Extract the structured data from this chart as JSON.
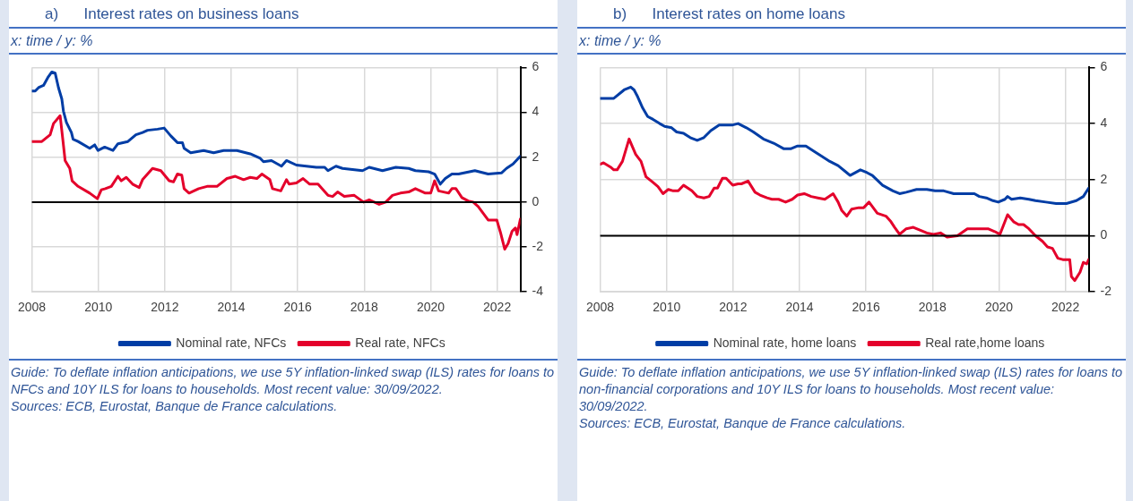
{
  "chart_data": [
    {
      "type": "line",
      "title": "a)      Interest rates on business loans",
      "subtitle": "x: time / y: %",
      "xlim": [
        2008,
        2022.7
      ],
      "xticks": [
        2008,
        2010,
        2012,
        2014,
        2016,
        2018,
        2020,
        2022
      ],
      "ylim": [
        -4,
        6
      ],
      "yticks": [
        -4,
        -2,
        0,
        2,
        4,
        6
      ],
      "grid": true,
      "legend": "bottom",
      "marker": "none",
      "line_style": "solid",
      "ref_lines": [
        {
          "axis": "y",
          "value": 0,
          "color": "#000000"
        }
      ],
      "annotations": [
        "Guide: To deflate inflation anticipations, we use 5Y inflation-linked swap (ILS) rates for loans to NFCs and 10Y ILS for loans to households. Most recent value: 30/09/2022.",
        "Sources: ECB, Eurostat, Banque de France calculations."
      ],
      "series": [
        {
          "name": "Nominal rate, NFCs",
          "color": "#003da5",
          "x": [
            2008.0,
            2008.1,
            2008.2,
            2008.35,
            2008.48,
            2008.6,
            2008.7,
            2008.8,
            2008.9,
            2008.95,
            2009.04,
            2009.19,
            2009.24,
            2009.39,
            2009.74,
            2009.89,
            2009.99,
            2010.19,
            2010.44,
            2010.59,
            2010.89,
            2011.13,
            2011.33,
            2011.48,
            2011.78,
            2011.98,
            2012.18,
            2012.38,
            2012.53,
            2012.58,
            2012.78,
            2013.17,
            2013.47,
            2013.77,
            2014.17,
            2014.57,
            2014.87,
            2014.97,
            2015.21,
            2015.51,
            2015.66,
            2015.96,
            2016.26,
            2016.56,
            2016.81,
            2016.91,
            2017.15,
            2017.35,
            2017.95,
            2018.15,
            2018.55,
            2018.95,
            2019.34,
            2019.54,
            2019.94,
            2020.12,
            2020.29,
            2020.44,
            2020.64,
            2020.84,
            2021.33,
            2021.73,
            2022.13,
            2022.28,
            2022.48,
            2022.7
          ],
          "values": [
            4.95,
            4.95,
            5.1,
            5.2,
            5.55,
            5.8,
            5.75,
            5.1,
            4.6,
            4.05,
            3.55,
            3.1,
            2.8,
            2.7,
            2.4,
            2.55,
            2.3,
            2.45,
            2.3,
            2.6,
            2.7,
            3.0,
            3.1,
            3.2,
            3.25,
            3.3,
            2.95,
            2.65,
            2.65,
            2.4,
            2.2,
            2.3,
            2.2,
            2.3,
            2.3,
            2.15,
            1.95,
            1.8,
            1.85,
            1.6,
            1.85,
            1.65,
            1.6,
            1.55,
            1.55,
            1.4,
            1.6,
            1.5,
            1.4,
            1.55,
            1.4,
            1.55,
            1.5,
            1.4,
            1.35,
            1.25,
            0.8,
            1.05,
            1.25,
            1.25,
            1.4,
            1.25,
            1.3,
            1.5,
            1.7,
            2.05
          ]
        },
        {
          "name": "Real rate, NFCs",
          "color": "#e4002b",
          "x": [
            2008.0,
            2008.3,
            2008.55,
            2008.65,
            2008.85,
            2008.93,
            2009.0,
            2009.14,
            2009.21,
            2009.39,
            2009.74,
            2009.97,
            2010.09,
            2010.21,
            2010.39,
            2010.59,
            2010.69,
            2010.84,
            2011.03,
            2011.23,
            2011.33,
            2011.63,
            2011.88,
            2012.13,
            2012.26,
            2012.38,
            2012.51,
            2012.58,
            2012.73,
            2013.02,
            2013.27,
            2013.57,
            2013.87,
            2014.12,
            2014.37,
            2014.57,
            2014.77,
            2014.92,
            2015.16,
            2015.24,
            2015.49,
            2015.66,
            2015.74,
            2015.96,
            2016.16,
            2016.36,
            2016.61,
            2016.91,
            2017.05,
            2017.2,
            2017.4,
            2017.7,
            2017.98,
            2018.15,
            2018.45,
            2018.65,
            2018.85,
            2019.09,
            2019.34,
            2019.54,
            2019.69,
            2019.84,
            2020.0,
            2020.12,
            2020.24,
            2020.54,
            2020.64,
            2020.76,
            2020.94,
            2021.13,
            2021.28,
            2021.43,
            2021.53,
            2021.73,
            2021.99,
            2022.1,
            2022.23,
            2022.33,
            2022.45,
            2022.55,
            2022.6,
            2022.7
          ],
          "values": [
            2.7,
            2.7,
            3.0,
            3.5,
            3.85,
            2.8,
            1.85,
            1.5,
            0.95,
            0.7,
            0.4,
            0.15,
            0.55,
            0.6,
            0.7,
            1.15,
            0.95,
            1.1,
            0.8,
            0.65,
            1.0,
            1.5,
            1.4,
            0.95,
            0.9,
            1.25,
            1.2,
            0.6,
            0.4,
            0.6,
            0.7,
            0.7,
            1.05,
            1.15,
            1.0,
            1.1,
            1.05,
            1.25,
            1.0,
            0.6,
            0.5,
            1.0,
            0.8,
            0.85,
            1.05,
            0.8,
            0.8,
            0.3,
            0.25,
            0.45,
            0.25,
            0.3,
            0.0,
            0.1,
            -0.1,
            0.0,
            0.3,
            0.4,
            0.45,
            0.6,
            0.5,
            0.4,
            0.4,
            0.95,
            0.5,
            0.4,
            0.6,
            0.6,
            0.2,
            0.05,
            0.0,
            -0.2,
            -0.4,
            -0.8,
            -0.8,
            -1.35,
            -2.1,
            -1.85,
            -1.3,
            -1.15,
            -1.45,
            -0.75
          ]
        }
      ]
    },
    {
      "type": "line",
      "title": "b)      Interest rates on home loans",
      "subtitle": "x: time / y: %",
      "xlim": [
        2008,
        2022.7
      ],
      "xticks": [
        2008,
        2010,
        2012,
        2014,
        2016,
        2018,
        2020,
        2022
      ],
      "ylim": [
        -2,
        6
      ],
      "yticks": [
        -2,
        0,
        2,
        4,
        6
      ],
      "grid": true,
      "legend": "bottom",
      "marker": "none",
      "line_style": "solid",
      "ref_lines": [
        {
          "axis": "y",
          "value": 0,
          "color": "#000000"
        }
      ],
      "annotations": [
        "Guide: To deflate inflation anticipations, we use 5Y inflation-linked swap (ILS) rates for loans to non-financial corporations and 10Y ILS for loans to households. Most recent value: 30/09/2022.",
        "Sources: ECB, Eurostat, Banque de France calculations."
      ],
      "series": [
        {
          "name": "Nominal rate, home loans",
          "color": "#003da5",
          "x": [
            2008.0,
            2008.41,
            2008.72,
            2008.92,
            2009.02,
            2009.13,
            2009.28,
            2009.43,
            2009.59,
            2009.79,
            2009.94,
            2010.15,
            2010.3,
            2010.51,
            2010.71,
            2010.92,
            2011.12,
            2011.33,
            2011.58,
            2011.99,
            2012.15,
            2012.4,
            2012.61,
            2012.91,
            2013.22,
            2013.53,
            2013.73,
            2013.94,
            2014.19,
            2014.45,
            2014.65,
            2014.91,
            2015.16,
            2015.42,
            2015.52,
            2015.83,
            2016.03,
            2016.19,
            2016.5,
            2016.81,
            2017.01,
            2017.21,
            2017.52,
            2017.83,
            2018.08,
            2018.34,
            2018.64,
            2019.26,
            2019.41,
            2019.62,
            2019.82,
            2019.98,
            2020.18,
            2020.26,
            2020.38,
            2020.64,
            2020.9,
            2021.1,
            2021.41,
            2021.72,
            2022.03,
            2022.33,
            2022.54,
            2022.7
          ],
          "values": [
            4.9,
            4.9,
            5.2,
            5.3,
            5.2,
            4.95,
            4.55,
            4.25,
            4.15,
            4.0,
            3.9,
            3.85,
            3.7,
            3.65,
            3.5,
            3.4,
            3.5,
            3.75,
            3.95,
            3.95,
            4.0,
            3.85,
            3.7,
            3.45,
            3.3,
            3.1,
            3.1,
            3.2,
            3.2,
            3.0,
            2.85,
            2.65,
            2.5,
            2.25,
            2.15,
            2.35,
            2.25,
            2.15,
            1.8,
            1.6,
            1.5,
            1.55,
            1.65,
            1.65,
            1.6,
            1.6,
            1.5,
            1.5,
            1.4,
            1.35,
            1.25,
            1.2,
            1.3,
            1.4,
            1.3,
            1.35,
            1.3,
            1.25,
            1.2,
            1.15,
            1.15,
            1.25,
            1.4,
            1.7
          ]
        },
        {
          "name": "Real rate,home loans",
          "color": "#e4002b",
          "x": [
            2008.0,
            2008.1,
            2008.31,
            2008.41,
            2008.51,
            2008.67,
            2008.87,
            2009.07,
            2009.23,
            2009.38,
            2009.59,
            2009.74,
            2009.89,
            2010.05,
            2010.2,
            2010.35,
            2010.51,
            2010.76,
            2010.92,
            2011.12,
            2011.28,
            2011.43,
            2011.53,
            2011.68,
            2011.79,
            2011.99,
            2012.15,
            2012.25,
            2012.45,
            2012.66,
            2012.81,
            2013.02,
            2013.17,
            2013.37,
            2013.58,
            2013.78,
            2013.94,
            2014.14,
            2014.35,
            2014.55,
            2014.76,
            2015.01,
            2015.16,
            2015.27,
            2015.42,
            2015.57,
            2015.78,
            2015.93,
            2016.09,
            2016.34,
            2016.6,
            2016.75,
            2016.86,
            2017.01,
            2017.21,
            2017.42,
            2017.62,
            2017.83,
            2018.03,
            2018.24,
            2018.44,
            2018.75,
            2019.05,
            2019.36,
            2019.67,
            2019.87,
            2020.03,
            2020.26,
            2020.44,
            2020.59,
            2020.74,
            2020.9,
            2021.1,
            2021.31,
            2021.46,
            2021.61,
            2021.77,
            2021.92,
            2022.13,
            2022.18,
            2022.28,
            2022.44,
            2022.54,
            2022.64,
            2022.7
          ],
          "values": [
            2.55,
            2.6,
            2.45,
            2.35,
            2.35,
            2.65,
            3.45,
            2.9,
            2.65,
            2.1,
            1.9,
            1.75,
            1.5,
            1.65,
            1.6,
            1.6,
            1.8,
            1.6,
            1.4,
            1.35,
            1.4,
            1.7,
            1.7,
            2.05,
            2.05,
            1.8,
            1.85,
            1.85,
            1.95,
            1.55,
            1.45,
            1.35,
            1.3,
            1.3,
            1.2,
            1.3,
            1.45,
            1.5,
            1.4,
            1.35,
            1.3,
            1.5,
            1.2,
            0.9,
            0.7,
            0.95,
            1.0,
            1.0,
            1.2,
            0.8,
            0.7,
            0.5,
            0.3,
            0.05,
            0.25,
            0.3,
            0.2,
            0.1,
            0.05,
            0.1,
            -0.05,
            0.0,
            0.25,
            0.25,
            0.25,
            0.15,
            0.05,
            0.75,
            0.5,
            0.4,
            0.4,
            0.25,
            0.0,
            -0.2,
            -0.4,
            -0.45,
            -0.8,
            -0.85,
            -0.85,
            -1.45,
            -1.6,
            -1.3,
            -0.95,
            -1.0,
            -0.85
          ]
        }
      ]
    }
  ]
}
